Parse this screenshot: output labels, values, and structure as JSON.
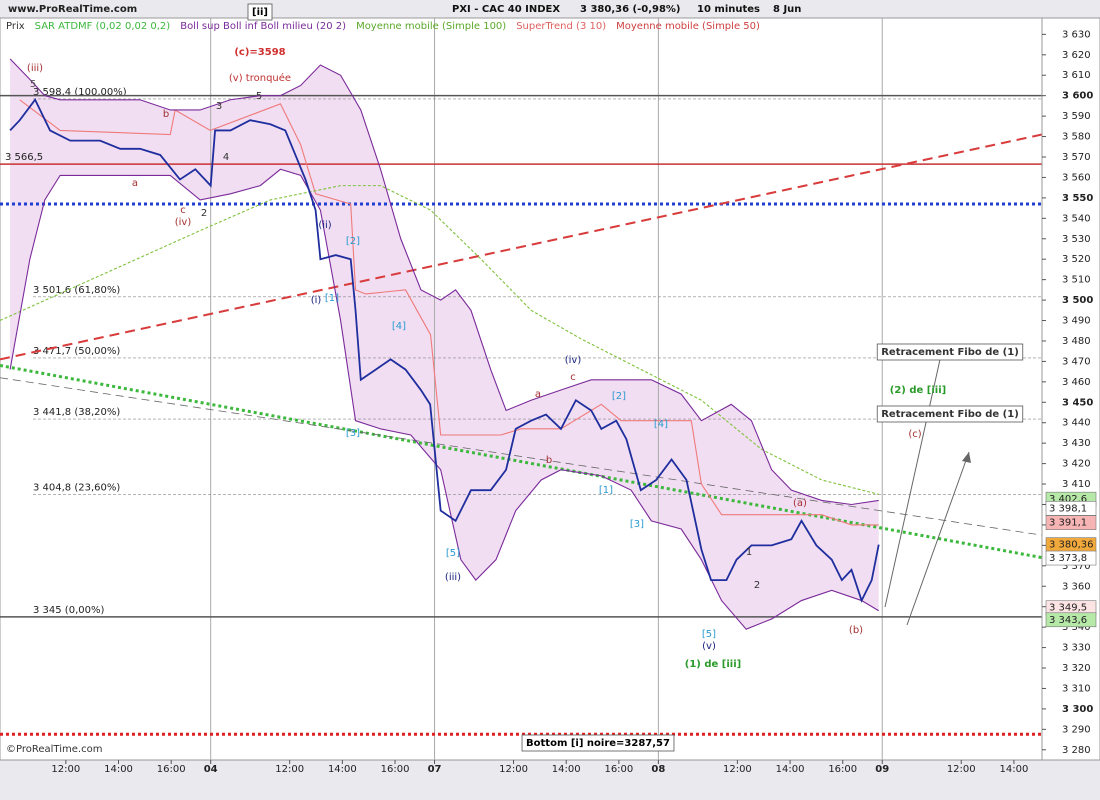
{
  "header": {
    "site": "www.ProRealTime.com",
    "instrument": "PXI - CAC 40 INDEX",
    "quote": "3 380,36 (-0,98%)",
    "period": "10 minutes",
    "date": "8 Jun",
    "copyright": "©ProRealTime.com"
  },
  "chart_data": {
    "type": "line",
    "xlim": [
      3,
      240.4
    ],
    "ylim": [
      3275,
      3638
    ],
    "xticks": [
      {
        "value": 18,
        "label": "12:00"
      },
      {
        "value": 30,
        "label": "14:00"
      },
      {
        "value": 42,
        "label": "16:00"
      },
      {
        "value": 51,
        "label": "04"
      },
      {
        "value": 69,
        "label": "12:00"
      },
      {
        "value": 81,
        "label": "14:00"
      },
      {
        "value": 93,
        "label": "16:00"
      },
      {
        "value": 102,
        "label": "07"
      },
      {
        "value": 120,
        "label": "12:00"
      },
      {
        "value": 132,
        "label": "14:00"
      },
      {
        "value": 144,
        "label": "16:00"
      },
      {
        "value": 153,
        "label": "08"
      },
      {
        "value": 171,
        "label": "12:00"
      },
      {
        "value": 183,
        "label": "14:00"
      },
      {
        "value": 195,
        "label": "16:00"
      },
      {
        "value": 204,
        "label": "09"
      },
      {
        "value": 222,
        "label": "12:00"
      },
      {
        "value": 234,
        "label": "14:00"
      }
    ],
    "yticks": [
      {
        "value": 3280,
        "label": "3 280"
      },
      {
        "value": 3290,
        "label": "3 290"
      },
      {
        "value": 3300,
        "label": "3 300"
      },
      {
        "value": 3310,
        "label": "3 310"
      },
      {
        "value": 3320,
        "label": "3 320"
      },
      {
        "value": 3330,
        "label": "3 330"
      },
      {
        "value": 3340,
        "label": "3 340"
      },
      {
        "value": 3350,
        "label": "3 350"
      },
      {
        "value": 3360,
        "label": "3 360"
      },
      {
        "value": 3370,
        "label": "3 370"
      },
      {
        "value": 3380,
        "label": "3 380"
      },
      {
        "value": 3390,
        "label": "3 390"
      },
      {
        "value": 3400,
        "label": "3 400"
      },
      {
        "value": 3410,
        "label": "3 410"
      },
      {
        "value": 3420,
        "label": "3 420"
      },
      {
        "value": 3430,
        "label": "3 430"
      },
      {
        "value": 3440,
        "label": "3 440"
      },
      {
        "value": 3450,
        "label": "3 450"
      },
      {
        "value": 3460,
        "label": "3 460"
      },
      {
        "value": 3470,
        "label": "3 470"
      },
      {
        "value": 3480,
        "label": "3 480"
      },
      {
        "value": 3490,
        "label": "3 490"
      },
      {
        "value": 3500,
        "label": "3 500"
      },
      {
        "value": 3510,
        "label": "3 510"
      },
      {
        "value": 3520,
        "label": "3 520"
      },
      {
        "value": 3530,
        "label": "3 530"
      },
      {
        "value": 3540,
        "label": "3 540"
      },
      {
        "value": 3550,
        "label": "3 550"
      },
      {
        "value": 3560,
        "label": "3 560"
      },
      {
        "value": 3570,
        "label": "3 570"
      },
      {
        "value": 3580,
        "label": "3 580"
      },
      {
        "value": 3590,
        "label": "3 590"
      },
      {
        "value": 3600,
        "label": "3 600"
      },
      {
        "value": 3610,
        "label": "3 610"
      },
      {
        "value": 3620,
        "label": "3 620"
      },
      {
        "value": 3630,
        "label": "3 630"
      }
    ],
    "series": [
      {
        "name": "Prix",
        "color": "#1f2e9e",
        "x": [
          5.3,
          7.5,
          11,
          14.4,
          19,
          25.8,
          30.4,
          34.9,
          39.5,
          44,
          47.5,
          51,
          52,
          55.5,
          60,
          64.6,
          68,
          70.3,
          72.6,
          74.9,
          76,
          79.5,
          82.9,
          84,
          85.2,
          88.6,
          92,
          95.4,
          98.9,
          101,
          103.4,
          106.8,
          110.3,
          114.8,
          118.3,
          120.5,
          124,
          127.4,
          130.8,
          134.2,
          137.7,
          140,
          143.4,
          145.7,
          149,
          152.5,
          156,
          159.4,
          162.8,
          165,
          168.5,
          170.8,
          174.2,
          178.8,
          183.3,
          185.6,
          189,
          192.5,
          194.8,
          197,
          199.3,
          201.6,
          203.2
        ],
        "values": [
          3583,
          3588,
          3598,
          3583,
          3578,
          3578,
          3574,
          3574,
          3571,
          3559,
          3564,
          3556,
          3583,
          3583,
          3588,
          3586,
          3583,
          3571,
          3559,
          3544,
          3520,
          3522,
          3520,
          3495,
          3461,
          3466,
          3471,
          3466,
          3456,
          3449,
          3397,
          3392,
          3407,
          3407,
          3417,
          3437,
          3441,
          3444,
          3437,
          3451,
          3446,
          3437,
          3441,
          3432,
          3407,
          3412,
          3422,
          3412,
          3378,
          3363,
          3363,
          3373,
          3380,
          3380,
          3383,
          3392,
          3380,
          3373,
          3363,
          3368,
          3353,
          3363,
          3380.36
        ]
      },
      {
        "name": "Boll sup",
        "color": "#7a2a9a",
        "x": [
          5.3,
          9.8,
          13.2,
          16.7,
          25.8,
          34.9,
          41.8,
          48.6,
          55.5,
          62.3,
          66.9,
          71.5,
          76,
          80.6,
          85.2,
          89.7,
          94.3,
          98.9,
          103.4,
          106.8,
          110.3,
          114.8,
          118.3,
          124,
          130.8,
          137.7,
          144.5,
          151.4,
          158.2,
          162.8,
          169.6,
          174.2,
          178.8,
          183.3,
          190.2,
          197,
          203.2
        ],
        "values": [
          3618,
          3608,
          3600,
          3598,
          3598,
          3598,
          3593,
          3593,
          3598,
          3600,
          3600,
          3605,
          3615,
          3610,
          3593,
          3564,
          3530,
          3505,
          3500,
          3505,
          3495,
          3466,
          3446,
          3451,
          3456,
          3461,
          3461,
          3461,
          3454,
          3441,
          3449,
          3441,
          3417,
          3407,
          3402,
          3400,
          3402
        ]
      },
      {
        "name": "Boll inf",
        "color": "#7a2a9a",
        "x": [
          5.3,
          9.8,
          13.2,
          16.7,
          25.8,
          34.9,
          41.8,
          48.6,
          55.5,
          62.3,
          66.9,
          71.5,
          76,
          80.6,
          84,
          89.7,
          96.6,
          103.4,
          108,
          111.4,
          116,
          120.5,
          126.3,
          130.8,
          140,
          146.8,
          151.4,
          158.2,
          162.8,
          167.4,
          173,
          178.8,
          185.6,
          192.5,
          199.3,
          203.2
        ],
        "values": [
          3466,
          3520,
          3549,
          3561,
          3561,
          3561,
          3561,
          3549,
          3552,
          3556,
          3564,
          3561,
          3544,
          3490,
          3441,
          3437,
          3434,
          3417,
          3373,
          3363,
          3373,
          3397,
          3412,
          3417,
          3414,
          3407,
          3392,
          3388,
          3373,
          3353,
          3339,
          3344,
          3353,
          3358,
          3353,
          3348
        ]
      },
      {
        "name": "Moyenne mobile (Simple 100)",
        "color": "#7fc23a",
        "x": [
          3,
          25.8,
          48.6,
          64.6,
          80.6,
          89.7,
          101.1,
          112.6,
          124,
          135.4,
          149.1,
          162.8,
          176.5,
          190.2,
          203.2
        ],
        "values": [
          3490,
          3512,
          3534,
          3549,
          3556,
          3556,
          3544,
          3520,
          3495,
          3481,
          3466,
          3451,
          3427,
          3412,
          3405
        ]
      },
      {
        "name": "SuperTrend (3 10)",
        "color": "#f07a7a",
        "x": [
          7.5,
          16.7,
          41.8,
          42.9,
          50.9,
          66.9,
          71.5,
          74.9,
          82.9,
          84,
          86.3,
          95.4,
          101.1,
          103.4,
          117.1,
          121.7,
          130.8,
          140,
          144.5,
          160.5,
          162.8,
          167.4,
          190.2,
          197,
          203.2
        ],
        "values": [
          3598,
          3583,
          3581,
          3593,
          3583,
          3596,
          3576,
          3552,
          3547,
          3505,
          3503,
          3505,
          3483,
          3434,
          3434,
          3437,
          3437,
          3449,
          3441,
          3441,
          3410,
          3395,
          3395,
          3390,
          3390
        ]
      }
    ],
    "legend": [
      {
        "name": "Prix",
        "color": "#333333"
      },
      {
        "name": "SAR ATDMF (0,02 0,02 0,2)",
        "color": "#3cb83c"
      },
      {
        "name": "Boll sup Boll inf Boll milieu (20 2)",
        "color": "#7a2a9a"
      },
      {
        "name": "Moyenne mobile (Simple 100)",
        "color": "#5aa82a"
      },
      {
        "name": "SuperTrend (3 10)",
        "color": "#e06060"
      },
      {
        "name": "Moyenne mobile (Simple 50)",
        "color": "#d04040"
      }
    ],
    "hlines": [
      {
        "value": 3600,
        "color": "#555555",
        "style": "solid"
      },
      {
        "value": 3345,
        "color": "#555555",
        "style": "solid"
      },
      {
        "value": 3566.5,
        "color": "#c83232",
        "style": "solid"
      },
      {
        "value": 3547,
        "color": "#1f3fd0",
        "style": "dotted"
      },
      {
        "value": 3287.57,
        "color": "#e02020",
        "style": "dotted"
      }
    ],
    "levels": [
      {
        "value": 3598.4,
        "label": "3 598,4 (100,00%)"
      },
      {
        "value": 3566.5,
        "label": "3 566,5"
      },
      {
        "value": 3501.6,
        "label": "3 501,6 (61,80%)"
      },
      {
        "value": 3471.7,
        "label": "3 471,7 (50,00%)"
      },
      {
        "value": 3441.8,
        "label": "3 441,8 (38,20%)"
      },
      {
        "value": 3404.8,
        "label": "3 404,8 (23,60%)"
      },
      {
        "value": 3345,
        "label": "3 345 (0,00%)"
      }
    ],
    "trendlines": [
      {
        "x": [
          3,
          240.4
        ],
        "values": [
          3471,
          3581
        ],
        "color": "#d83c3c",
        "style": "dashed"
      },
      {
        "x": [
          3,
          240.4
        ],
        "values": [
          3468,
          3374
        ],
        "color": "#3cb83c",
        "style": "dotted"
      },
      {
        "x": [
          3,
          240.4
        ],
        "values": [
          3462,
          3385
        ],
        "color": "#666666",
        "style": "thin-dashed"
      }
    ],
    "price_tags": [
      {
        "value": 3402.6,
        "label": "3 402,6",
        "color": "#b6e8a8"
      },
      {
        "value": 3398.1,
        "label": "3 398,1",
        "color": "#ffffff"
      },
      {
        "value": 3391.1,
        "label": "3 391,1",
        "color": "#f6b4b4"
      },
      {
        "value": 3380.36,
        "label": "3 380,36",
        "color": "#f2a93b"
      },
      {
        "value": 3373.8,
        "label": "3 373,8",
        "color": "#ffffff"
      },
      {
        "value": 3349.5,
        "label": "3 349,5",
        "color": "#fde4e4"
      },
      {
        "value": 3343.6,
        "label": "3 343,6",
        "color": "#b6e8a8"
      }
    ],
    "annotations": [
      {
        "text": "[ii]",
        "color": "#000000",
        "style": "box"
      },
      {
        "text": "(c)=3598",
        "color": "#d03030",
        "style": "bold"
      },
      {
        "text": "(v) tronquée",
        "color": "#c03030",
        "style": "plain"
      },
      {
        "text": "(iii)",
        "color": "#a33030",
        "style": "plain"
      },
      {
        "text": "5",
        "color": "#555555",
        "style": "plain"
      },
      {
        "text": "(iv)",
        "color": "#a33030",
        "style": "plain"
      },
      {
        "text": "c",
        "color": "#a33030",
        "style": "plain"
      },
      {
        "text": "2",
        "color": "#333333",
        "style": "plain"
      },
      {
        "text": "a",
        "color": "#a33030",
        "style": "plain"
      },
      {
        "text": "b",
        "color": "#a33030",
        "style": "plain"
      },
      {
        "text": "3",
        "color": "#333333",
        "style": "plain"
      },
      {
        "text": "5",
        "color": "#333333",
        "style": "plain"
      },
      {
        "text": "4",
        "color": "#333333",
        "style": "plain"
      },
      {
        "text": "(ii)",
        "color": "#1a237e",
        "style": "plain"
      },
      {
        "text": "(i)",
        "color": "#1a237e",
        "style": "plain"
      },
      {
        "text": "[2]",
        "color": "#2a9ad0",
        "style": "plain"
      },
      {
        "text": "[1]",
        "color": "#2a9ad0",
        "style": "plain"
      },
      {
        "text": "[4]",
        "color": "#2a9ad0",
        "style": "plain"
      },
      {
        "text": "[3]",
        "color": "#2a9ad0",
        "style": "plain"
      },
      {
        "text": "[5]",
        "color": "#2a9ad0",
        "style": "plain"
      },
      {
        "text": "(iii)",
        "color": "#1a237e",
        "style": "plain"
      },
      {
        "text": "(iv)",
        "color": "#1a237e",
        "style": "plain"
      },
      {
        "text": "a",
        "color": "#a33030",
        "style": "plain"
      },
      {
        "text": "c",
        "color": "#a33030",
        "style": "plain"
      },
      {
        "text": "b",
        "color": "#a33030",
        "style": "plain"
      },
      {
        "text": "[2]",
        "color": "#2a9ad0",
        "style": "plain"
      },
      {
        "text": "[4]",
        "color": "#2a9ad0",
        "style": "plain"
      },
      {
        "text": "[1]",
        "color": "#2a9ad0",
        "style": "plain"
      },
      {
        "text": "[3]",
        "color": "#2a9ad0",
        "style": "plain"
      },
      {
        "text": "[5]",
        "color": "#2a9ad0",
        "style": "plain"
      },
      {
        "text": "(v)",
        "color": "#1a237e",
        "style": "plain"
      },
      {
        "text": "(1) de [iii]",
        "color": "#2a9a2a",
        "style": "bold"
      },
      {
        "text": "1",
        "color": "#333333",
        "style": "plain"
      },
      {
        "text": "2",
        "color": "#333333",
        "style": "plain"
      },
      {
        "text": "(a)",
        "color": "#a33030",
        "style": "plain"
      },
      {
        "text": "(b)",
        "color": "#a33030",
        "style": "plain"
      },
      {
        "text": "(c)",
        "color": "#a33030",
        "style": "plain"
      },
      {
        "text": "(2) de [iii]",
        "color": "#2a9a2a",
        "style": "bold"
      },
      {
        "text": "Retracement Fibo de (1)",
        "color": "#333333",
        "style": "box"
      },
      {
        "text": "Retracement Fibo de (1)",
        "color": "#333333",
        "style": "box"
      },
      {
        "text": "Bottom [i] noire=3287,57",
        "color": "#000000",
        "style": "box"
      }
    ]
  }
}
